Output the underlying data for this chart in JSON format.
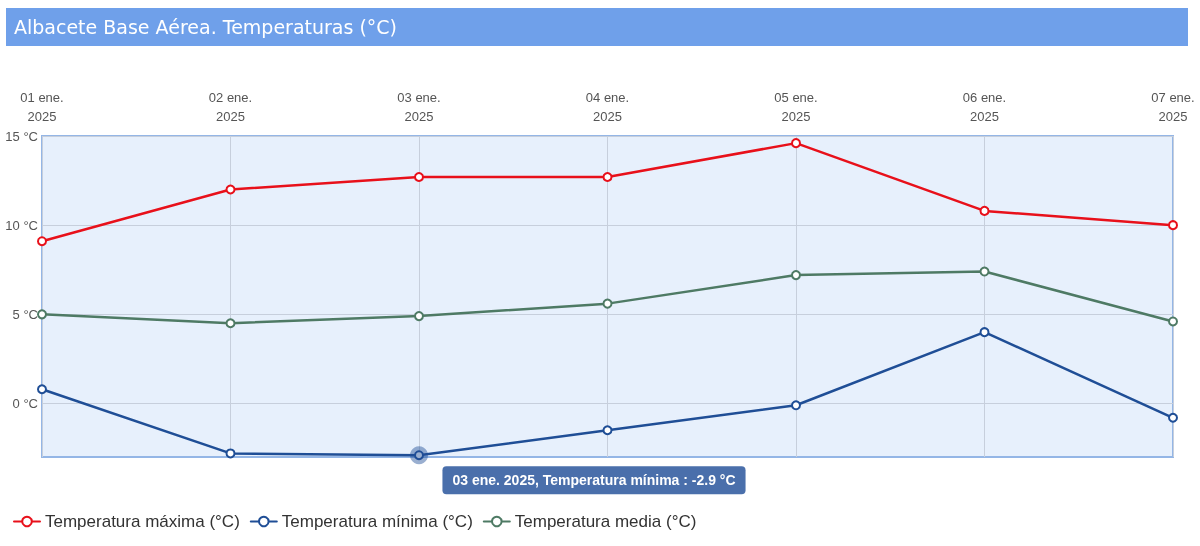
{
  "chart_data": {
    "type": "line",
    "title": "Albacete Base Aérea. Temperaturas (°C)",
    "categories": [
      "01 ene.\n2025",
      "02 ene.\n2025",
      "03 ene.\n2025",
      "04 ene.\n2025",
      "05 ene.\n2025",
      "06 ene.\n2025",
      "07 ene.\n2025"
    ],
    "series": [
      {
        "name": "Temperatura máxima (°C)",
        "color": "#e8101a",
        "values": [
          9.1,
          12.0,
          12.7,
          12.7,
          14.6,
          10.8,
          10.0
        ]
      },
      {
        "name": "Temperatura mínima (°C)",
        "color": "#1f4e96",
        "values": [
          0.8,
          -2.8,
          -2.9,
          -1.5,
          -0.1,
          4.0,
          -0.8
        ]
      },
      {
        "name": "Temperatura media (°C)",
        "color": "#4e7a64",
        "values": [
          5.0,
          4.5,
          4.9,
          5.6,
          7.2,
          7.4,
          4.6
        ]
      }
    ],
    "ylim": [
      -3,
      15
    ],
    "yticks": [
      {
        "value": 0,
        "label": "0 °C"
      },
      {
        "value": 5,
        "label": "5 °C"
      },
      {
        "value": 10,
        "label": "10 °C"
      },
      {
        "value": 15,
        "label": "15 °C"
      }
    ],
    "annotations": [
      {
        "text": "03 ene. 2025, Temperatura mínima : -2.9 °C",
        "x": "03 ene.\n2025",
        "y": -2.9
      }
    ],
    "grid": true,
    "legend": "bottom left",
    "marker": "circle",
    "line_style": "solid"
  }
}
